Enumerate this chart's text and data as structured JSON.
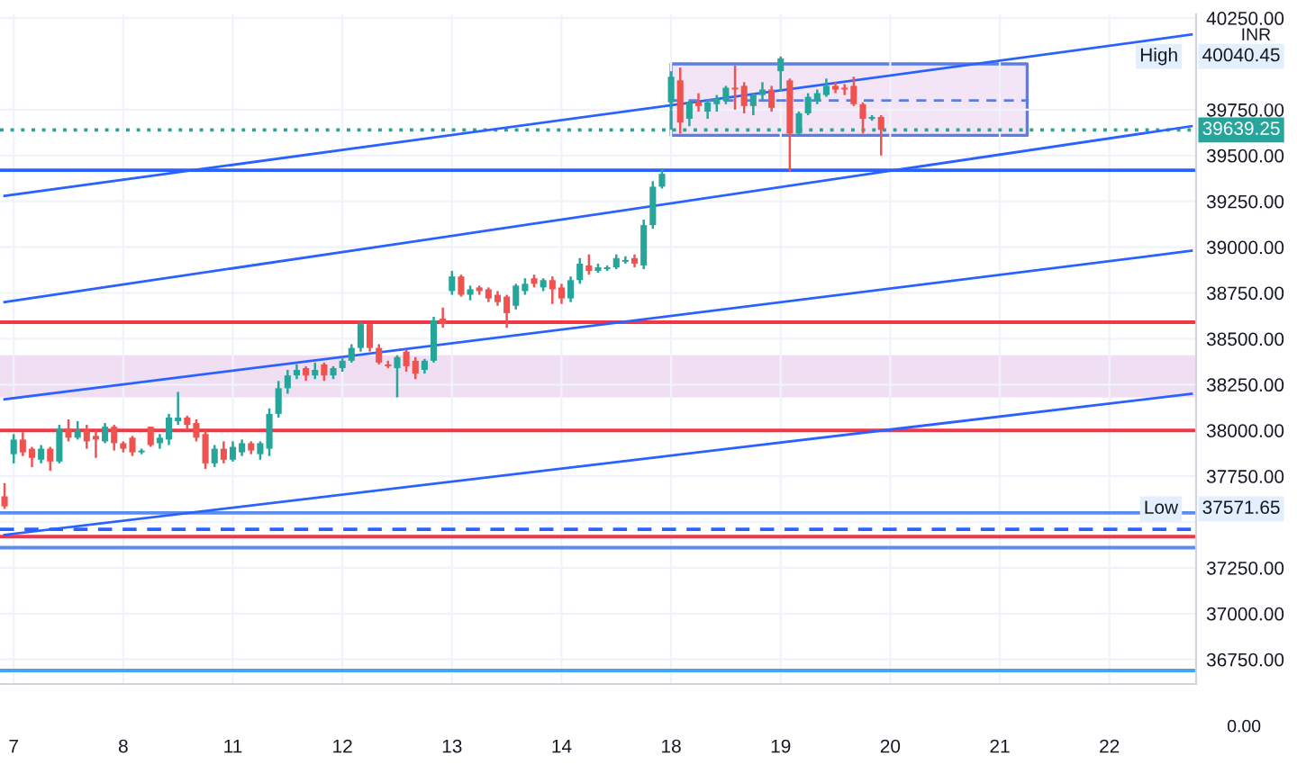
{
  "chart_data": {
    "type": "candlestick",
    "categories": [
      null,
      "7",
      null,
      null,
      null,
      null,
      null,
      null,
      null,
      null,
      null,
      null,
      null,
      "8",
      null,
      null,
      null,
      null,
      null,
      null,
      null,
      null,
      null,
      null,
      null,
      "11",
      null,
      null,
      null,
      null,
      null,
      null,
      null,
      null,
      null,
      null,
      null,
      "12",
      null,
      null,
      null,
      null,
      null,
      null,
      null,
      null,
      null,
      null,
      null,
      "13",
      null,
      null,
      null,
      null,
      null,
      null,
      null,
      null,
      null,
      null,
      null,
      "14",
      null,
      null,
      null,
      null,
      null,
      null,
      null,
      null,
      null,
      null,
      null,
      "18",
      null,
      null,
      null,
      null,
      null,
      null,
      null,
      null,
      null,
      null,
      null,
      "19",
      null,
      null,
      null,
      null,
      null,
      null,
      null,
      null,
      null,
      null,
      null,
      "20",
      null,
      null,
      null,
      null,
      null,
      null,
      null,
      null,
      null,
      null,
      null,
      "21",
      null,
      null,
      null,
      null,
      null,
      null,
      null,
      null,
      null,
      null,
      null,
      "22",
      null,
      null,
      null,
      null,
      null,
      null,
      null,
      null,
      null
    ],
    "ohlc": [
      [
        37640,
        37712,
        37571.65,
        37585
      ],
      [
        37870,
        37980,
        37820,
        37950
      ],
      [
        37950,
        37990,
        37860,
        37880
      ],
      [
        37900,
        37910,
        37800,
        37850
      ],
      [
        37840,
        37920,
        37820,
        37900
      ],
      [
        37900,
        37910,
        37780,
        37830
      ],
      [
        37830,
        38030,
        37820,
        38010
      ],
      [
        38010,
        38060,
        37940,
        37960
      ],
      [
        37960,
        38050,
        37950,
        38000
      ],
      [
        38000,
        38030,
        37900,
        37940
      ],
      [
        37970,
        38000,
        37850,
        37950
      ],
      [
        37940,
        38040,
        37930,
        38020
      ],
      [
        38020,
        38030,
        37890,
        37930
      ],
      [
        37930,
        37940,
        37880,
        37900
      ],
      [
        37960,
        37970,
        37860,
        37880
      ],
      [
        37880,
        37900,
        37870,
        37890
      ],
      [
        38020,
        38020,
        37910,
        37920
      ],
      [
        37930,
        37980,
        37900,
        37960
      ],
      [
        37950,
        38090,
        37920,
        38070
      ],
      [
        38050,
        38210,
        38030,
        38070
      ],
      [
        38070,
        38080,
        38000,
        38030
      ],
      [
        38040,
        38060,
        37940,
        37960
      ],
      [
        37980,
        38000,
        37790,
        37820
      ],
      [
        37820,
        37920,
        37800,
        37900
      ],
      [
        37900,
        37940,
        37820,
        37840
      ],
      [
        37840,
        37940,
        37830,
        37910
      ],
      [
        37880,
        37950,
        37860,
        37930
      ],
      [
        37930,
        37940,
        37870,
        37890
      ],
      [
        37870,
        37940,
        37840,
        37930
      ],
      [
        37900,
        38120,
        37860,
        38090
      ],
      [
        38090,
        38270,
        38070,
        38230
      ],
      [
        38230,
        38330,
        38200,
        38300
      ],
      [
        38300,
        38360,
        38280,
        38330
      ],
      [
        38340,
        38350,
        38270,
        38300
      ],
      [
        38300,
        38370,
        38280,
        38330
      ],
      [
        38360,
        38370,
        38270,
        38300
      ],
      [
        38300,
        38350,
        38280,
        38340
      ],
      [
        38340,
        38400,
        38320,
        38380
      ],
      [
        38380,
        38470,
        38370,
        38450
      ],
      [
        38450,
        38590,
        38430,
        38580
      ],
      [
        38580,
        38580,
        38430,
        38450
      ],
      [
        38450,
        38470,
        38360,
        38370
      ],
      [
        38360,
        38380,
        38340,
        38350
      ],
      [
        38340,
        38410,
        38180,
        38400
      ],
      [
        38430,
        38440,
        38320,
        38350
      ],
      [
        38380,
        38400,
        38280,
        38310
      ],
      [
        38330,
        38390,
        38310,
        38380
      ],
      [
        38380,
        38620,
        38370,
        38600
      ],
      [
        38610,
        38670,
        38560,
        38580
      ],
      [
        38760,
        38870,
        38740,
        38840
      ],
      [
        38840,
        38850,
        38730,
        38740
      ],
      [
        38740,
        38790,
        38710,
        38770
      ],
      [
        38780,
        38790,
        38740,
        38760
      ],
      [
        38770,
        38780,
        38700,
        38720
      ],
      [
        38740,
        38760,
        38680,
        38700
      ],
      [
        38730,
        38740,
        38560,
        38640
      ],
      [
        38680,
        38800,
        38660,
        38790
      ],
      [
        38760,
        38830,
        38740,
        38800
      ],
      [
        38830,
        38850,
        38780,
        38800
      ],
      [
        38780,
        38830,
        38760,
        38820
      ],
      [
        38820,
        38840,
        38690,
        38770
      ],
      [
        38780,
        38800,
        38690,
        38720
      ],
      [
        38720,
        38840,
        38700,
        38820
      ],
      [
        38820,
        38940,
        38800,
        38910
      ],
      [
        38900,
        38960,
        38850,
        38870
      ],
      [
        38870,
        38910,
        38860,
        38890
      ],
      [
        38880,
        38900,
        38870,
        38890
      ],
      [
        38890,
        38960,
        38880,
        38940
      ],
      [
        38920,
        38950,
        38910,
        38930
      ],
      [
        38940,
        38960,
        38890,
        38910
      ],
      [
        38900,
        39150,
        38880,
        39120
      ],
      [
        39120,
        39360,
        39100,
        39330
      ],
      [
        39330,
        39430,
        39320,
        39400
      ],
      [
        39790,
        39960,
        39640,
        39930
      ],
      [
        39910,
        39980,
        39620,
        39680
      ],
      [
        39700,
        39800,
        39660,
        39790
      ],
      [
        39790,
        39840,
        39740,
        39770
      ],
      [
        39740,
        39800,
        39700,
        39790
      ],
      [
        39780,
        39830,
        39740,
        39810
      ],
      [
        39800,
        39880,
        39780,
        39870
      ],
      [
        39870,
        39990,
        39750,
        39860
      ],
      [
        39880,
        39900,
        39730,
        39770
      ],
      [
        39770,
        39840,
        39720,
        39830
      ],
      [
        39830,
        39900,
        39800,
        39860
      ],
      [
        39860,
        39880,
        39740,
        39760
      ],
      [
        39960,
        40040.45,
        39850,
        40030
      ],
      [
        39910,
        39920,
        39410,
        39620
      ],
      [
        39620,
        39740,
        39610,
        39730
      ],
      [
        39730,
        39840,
        39720,
        39820
      ],
      [
        39800,
        39860,
        39780,
        39840
      ],
      [
        39830,
        39920,
        39820,
        39880
      ],
      [
        39880,
        39900,
        39840,
        39860
      ],
      [
        39870,
        39890,
        39830,
        39860
      ],
      [
        39880,
        39930,
        39770,
        39780
      ],
      [
        39780,
        39790,
        39620,
        39700
      ],
      [
        39700,
        39720,
        39690,
        39710
      ],
      [
        39710,
        39720,
        39500,
        39640
      ],
      null,
      null,
      null,
      null,
      null,
      null,
      null,
      null,
      null,
      null,
      null,
      null,
      null,
      null,
      null,
      null,
      null,
      null,
      null,
      null,
      null,
      null,
      null,
      null,
      null,
      null,
      null,
      null,
      null,
      null,
      null,
      null,
      null,
      null
    ],
    "colors": [
      "#ef5350",
      "#26a69a",
      "#ef5350",
      "#ef5350",
      "#26a69a",
      "#ef5350",
      "#26a69a",
      "#ef5350",
      "#26a69a",
      "#ef5350",
      "#ef5350",
      "#26a69a",
      "#ef5350",
      "#ef5350",
      "#ef5350",
      "#26a69a",
      "#ef5350",
      "#26a69a",
      "#26a69a",
      "#26a69a",
      "#ef5350",
      "#ef5350",
      "#ef5350",
      "#26a69a",
      "#ef5350",
      "#26a69a",
      "#26a69a",
      "#ef5350",
      "#26a69a",
      "#26a69a",
      "#26a69a",
      "#26a69a",
      "#26a69a",
      "#ef5350",
      "#26a69a",
      "#ef5350",
      "#26a69a",
      "#26a69a",
      "#26a69a",
      "#26a69a",
      "#ef5350",
      "#ef5350",
      "#ef5350",
      "#26a69a",
      "#ef5350",
      "#ef5350",
      "#26a69a",
      "#26a69a",
      "#ef5350",
      "#26a69a",
      "#ef5350",
      "#26a69a",
      "#ef5350",
      "#ef5350",
      "#ef5350",
      "#ef5350",
      "#26a69a",
      "#26a69a",
      "#ef5350",
      "#26a69a",
      "#ef5350",
      "#ef5350",
      "#26a69a",
      "#26a69a",
      "#ef5350",
      "#26a69a",
      "#26a69a",
      "#26a69a",
      "#26a69a",
      "#ef5350",
      "#26a69a",
      "#26a69a",
      "#26a69a",
      "#26a69a",
      "#ef5350",
      "#26a69a",
      "#ef5350",
      "#26a69a",
      "#26a69a",
      "#26a69a",
      "#ef5350",
      "#ef5350",
      "#26a69a",
      "#26a69a",
      "#ef5350",
      "#26a69a",
      "#ef5350",
      "#26a69a",
      "#26a69a",
      "#26a69a",
      "#26a69a",
      "#ef5350",
      "#ef5350",
      "#ef5350",
      "#ef5350",
      "#26a69a",
      "#ef5350",
      null,
      null,
      null,
      null,
      null,
      null,
      null,
      null,
      null,
      null,
      null,
      null,
      null,
      null,
      null,
      null,
      null,
      null,
      null,
      null,
      null,
      null,
      null,
      null,
      null,
      null,
      null,
      null,
      null,
      null,
      null,
      null,
      null,
      null
    ],
    "series": [
      {
        "type": "line",
        "values": [
          39280,
          null,
          null,
          null,
          null,
          null,
          null,
          null,
          null,
          null,
          null,
          null,
          null,
          null,
          null,
          null,
          null,
          null,
          null,
          null,
          null,
          null,
          null,
          null,
          null,
          null,
          null,
          null,
          null,
          null,
          null,
          null,
          null,
          null,
          null,
          null,
          null,
          null,
          null,
          null,
          null,
          null,
          null,
          null,
          null,
          null,
          null,
          null,
          null,
          null,
          null,
          null,
          null,
          null,
          null,
          null,
          null,
          null,
          null,
          null,
          null,
          null,
          null,
          null,
          null,
          null,
          null,
          null,
          null,
          null,
          null,
          null,
          null,
          null,
          null,
          null,
          null,
          null,
          null,
          null,
          null,
          null,
          null,
          null,
          null,
          null,
          null,
          null,
          null,
          null,
          null,
          null,
          null,
          null,
          null,
          null,
          null,
          null,
          null,
          null,
          null,
          null,
          null,
          null,
          null,
          null,
          null,
          null,
          null,
          null,
          null,
          null,
          null,
          null,
          null,
          null,
          null,
          null,
          null,
          null,
          null,
          null,
          null,
          null,
          null,
          null,
          null,
          null,
          null,
          null,
          40160
        ],
        "color": "#2962ff"
      },
      {
        "type": "line",
        "values": [
          38700,
          null,
          null,
          null,
          null,
          null,
          null,
          null,
          null,
          null,
          null,
          null,
          null,
          null,
          null,
          null,
          null,
          null,
          null,
          null,
          null,
          null,
          null,
          null,
          null,
          null,
          null,
          null,
          null,
          null,
          null,
          null,
          null,
          null,
          null,
          null,
          null,
          null,
          null,
          null,
          null,
          null,
          null,
          null,
          null,
          null,
          null,
          null,
          null,
          null,
          null,
          null,
          null,
          null,
          null,
          null,
          null,
          null,
          null,
          null,
          null,
          null,
          null,
          null,
          null,
          null,
          null,
          null,
          null,
          null,
          null,
          null,
          null,
          null,
          null,
          null,
          null,
          null,
          null,
          null,
          null,
          null,
          null,
          null,
          null,
          null,
          null,
          null,
          null,
          null,
          null,
          null,
          null,
          null,
          null,
          null,
          null,
          null,
          null,
          null,
          null,
          null,
          null,
          null,
          null,
          null,
          null,
          null,
          null,
          null,
          null,
          null,
          null,
          null,
          null,
          null,
          null,
          null,
          null,
          null,
          null,
          null,
          null,
          null,
          null,
          null,
          null,
          null,
          null,
          null,
          39660
        ],
        "color": "#2962ff"
      },
      {
        "type": "line",
        "values": [
          38170,
          null,
          null,
          null,
          null,
          null,
          null,
          null,
          null,
          null,
          null,
          null,
          null,
          null,
          null,
          null,
          null,
          null,
          null,
          null,
          null,
          null,
          null,
          null,
          null,
          null,
          null,
          null,
          null,
          null,
          null,
          null,
          null,
          null,
          null,
          null,
          null,
          null,
          null,
          null,
          null,
          null,
          null,
          null,
          null,
          null,
          null,
          null,
          null,
          null,
          null,
          null,
          null,
          null,
          null,
          null,
          null,
          null,
          null,
          null,
          null,
          null,
          null,
          null,
          null,
          null,
          null,
          null,
          null,
          null,
          null,
          null,
          null,
          null,
          null,
          null,
          null,
          null,
          null,
          null,
          null,
          null,
          null,
          null,
          null,
          null,
          null,
          null,
          null,
          null,
          null,
          null,
          null,
          null,
          null,
          null,
          null,
          null,
          null,
          null,
          null,
          null,
          null,
          null,
          null,
          null,
          null,
          null,
          null,
          null,
          null,
          null,
          null,
          null,
          null,
          null,
          null,
          null,
          null,
          null,
          null,
          null,
          null,
          null,
          null,
          null,
          null,
          null,
          null,
          null,
          38980
        ],
        "color": "#2962ff"
      },
      {
        "type": "line",
        "values": [
          37430,
          null,
          null,
          null,
          null,
          null,
          null,
          null,
          null,
          null,
          null,
          null,
          null,
          null,
          null,
          null,
          null,
          null,
          null,
          null,
          null,
          null,
          null,
          null,
          null,
          null,
          null,
          null,
          null,
          null,
          null,
          null,
          null,
          null,
          null,
          null,
          null,
          null,
          null,
          null,
          null,
          null,
          null,
          null,
          null,
          null,
          null,
          null,
          null,
          null,
          null,
          null,
          null,
          null,
          null,
          null,
          null,
          null,
          null,
          null,
          null,
          null,
          null,
          null,
          null,
          null,
          null,
          null,
          null,
          null,
          null,
          null,
          null,
          null,
          null,
          null,
          null,
          null,
          null,
          null,
          null,
          null,
          null,
          null,
          null,
          null,
          null,
          null,
          null,
          null,
          null,
          null,
          null,
          null,
          null,
          null,
          null,
          null,
          null,
          null,
          null,
          null,
          null,
          null,
          null,
          null,
          null,
          null,
          null,
          null,
          null,
          null,
          null,
          null,
          null,
          null,
          null,
          null,
          null,
          null,
          null,
          null,
          null,
          null,
          null,
          null,
          null,
          null,
          null,
          null,
          38200
        ],
        "color": "#2962ff"
      },
      {
        "type": "line",
        "values": [
          null,
          null,
          null,
          null,
          null,
          null,
          null,
          null,
          null,
          null,
          null,
          null,
          null,
          null,
          null,
          null,
          null,
          null,
          null,
          null,
          null,
          null,
          null,
          null,
          null,
          null,
          null,
          null,
          null,
          null,
          null,
          null,
          null,
          null,
          null,
          null,
          null,
          null,
          null,
          null,
          null,
          null,
          null,
          null,
          null,
          null,
          null,
          null,
          null,
          null,
          null,
          null,
          null,
          null,
          null,
          null,
          null,
          null,
          null,
          null,
          null,
          null,
          null,
          null,
          null,
          null,
          null,
          null,
          null,
          null,
          null,
          null,
          null,
          39800,
          null,
          null,
          null,
          null,
          null,
          null,
          null,
          null,
          null,
          null,
          null,
          null,
          null,
          null,
          null,
          null,
          null,
          null,
          null,
          null,
          null,
          null,
          null,
          null,
          null,
          null,
          null,
          null,
          null,
          null,
          null,
          null,
          null,
          null,
          null,
          null,
          null,
          null,
          39800,
          null,
          null,
          null,
          null,
          null,
          null,
          null,
          null,
          null,
          null,
          null,
          null,
          null,
          null,
          null,
          null,
          null,
          null
        ],
        "lower": [
          null,
          null,
          null,
          null,
          null,
          null,
          null,
          null,
          null,
          null,
          null,
          null,
          null,
          null,
          null,
          null,
          null,
          null,
          null,
          null,
          null,
          null,
          null,
          null,
          null,
          null,
          null,
          null,
          null,
          null,
          null,
          null,
          null,
          null,
          null,
          null,
          null,
          null,
          null,
          null,
          null,
          null,
          null,
          null,
          null,
          null,
          null,
          null,
          null,
          null,
          null,
          null,
          null,
          null,
          null,
          null,
          null,
          null,
          null,
          null,
          null,
          null,
          null,
          null,
          null,
          null,
          null,
          null,
          null,
          null,
          null,
          null,
          null,
          39610,
          null,
          null,
          null,
          null,
          null,
          null,
          null,
          null,
          null,
          null,
          null,
          null,
          null,
          null,
          null,
          null,
          null,
          null,
          null,
          null,
          null,
          null,
          null,
          null,
          null,
          null,
          null,
          null,
          null,
          null,
          null,
          null,
          null,
          null,
          null,
          null,
          null,
          null,
          39610,
          null,
          null,
          null,
          null,
          null,
          null,
          null,
          null,
          null,
          null,
          null,
          null,
          null,
          null,
          null,
          null,
          null,
          null
        ],
        "upper": [
          null,
          null,
          null,
          null,
          null,
          null,
          null,
          null,
          null,
          null,
          null,
          null,
          null,
          null,
          null,
          null,
          null,
          null,
          null,
          null,
          null,
          null,
          null,
          null,
          null,
          null,
          null,
          null,
          null,
          null,
          null,
          null,
          null,
          null,
          null,
          null,
          null,
          null,
          null,
          null,
          null,
          null,
          null,
          null,
          null,
          null,
          null,
          null,
          null,
          null,
          null,
          null,
          null,
          null,
          null,
          null,
          null,
          null,
          null,
          null,
          null,
          null,
          null,
          null,
          null,
          null,
          null,
          null,
          null,
          null,
          null,
          null,
          null,
          40000,
          null,
          null,
          null,
          null,
          null,
          null,
          null,
          null,
          null,
          null,
          null,
          null,
          null,
          null,
          null,
          null,
          null,
          null,
          null,
          null,
          null,
          null,
          null,
          null,
          null,
          null,
          null,
          null,
          null,
          null,
          null,
          null,
          null,
          null,
          null,
          null,
          null,
          null,
          40000,
          null,
          null,
          null,
          null,
          null,
          null,
          null,
          null,
          null,
          null,
          null,
          null,
          null,
          null,
          null,
          null,
          null,
          null
        ],
        "color": "#5b7ee5",
        "line_style": "dashed"
      }
    ],
    "ylim": [
      36616,
      40270
    ],
    "yticks": [
      {
        "value": 36750,
        "label": "36750.00"
      },
      {
        "value": 37000,
        "label": "37000.00"
      },
      {
        "value": 37250,
        "label": "37250.00"
      },
      {
        "value": 37500,
        "label": null
      },
      {
        "value": 37750,
        "label": "37750.00"
      },
      {
        "value": 38000,
        "label": "38000.00"
      },
      {
        "value": 38250,
        "label": "38250.00"
      },
      {
        "value": 38500,
        "label": "38500.00"
      },
      {
        "value": 38750,
        "label": "38750.00"
      },
      {
        "value": 39000,
        "label": "39000.00"
      },
      {
        "value": 39250,
        "label": "39250.00"
      },
      {
        "value": 39500,
        "label": "39500.00"
      },
      {
        "value": 39750,
        "label": "39750.00"
      },
      {
        "value": 40250,
        "label": "40250.00"
      }
    ],
    "ref_lines": [
      {
        "axis": "y",
        "value": 39639.25,
        "label": "39639.25",
        "color": "#26a69a",
        "line_style": "dotted"
      },
      {
        "axis": "y",
        "value": 39420,
        "color": "#2962ff"
      },
      {
        "axis": "y",
        "value": 38590,
        "color": "#f23645"
      },
      {
        "axis": "y",
        "value": 38000,
        "color": "#f23645"
      },
      {
        "axis": "y",
        "value": 37550,
        "color": "#5b8def"
      },
      {
        "axis": "y",
        "value": 37460,
        "color": "#2962ff",
        "line_style": "dashed"
      },
      {
        "axis": "y",
        "value": 37420,
        "color": "#f23645"
      },
      {
        "axis": "y",
        "value": 37360,
        "color": "#5b8def"
      },
      {
        "axis": "y",
        "value": 36690,
        "color": "#42a5f5"
      }
    ],
    "bands": [
      {
        "axis": "y",
        "from": 38190,
        "to": 38400,
        "color": "#ce93d8"
      }
    ],
    "annotations": [
      "INR",
      "0.00",
      "High",
      "40040.45",
      "Low",
      "37571.65"
    ],
    "grid": true,
    "legend": false
  }
}
